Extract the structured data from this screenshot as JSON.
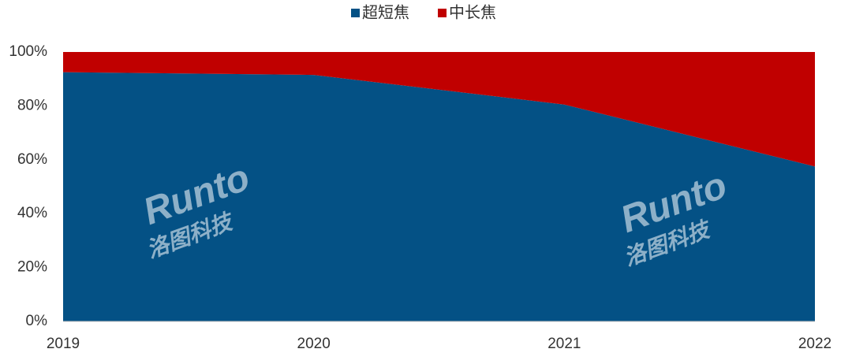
{
  "chart_data": {
    "type": "stacked_area",
    "categories": [
      "2019",
      "2020",
      "2021",
      "2022"
    ],
    "series": [
      {
        "name": "超短焦",
        "color": "#045185",
        "values": [
          92.5,
          91.5,
          80.5,
          57.5
        ]
      },
      {
        "name": "中长焦",
        "color": "#c00000",
        "values": [
          7.5,
          8.5,
          19.5,
          42.5
        ]
      }
    ],
    "ylim": [
      0,
      100
    ],
    "yticks": [
      {
        "value": 0,
        "label": "0%"
      },
      {
        "value": 20,
        "label": "20%"
      },
      {
        "value": 40,
        "label": "40%"
      },
      {
        "value": 60,
        "label": "60%"
      },
      {
        "value": 80,
        "label": "80%"
      },
      {
        "value": 100,
        "label": "100%"
      }
    ],
    "legend": "top",
    "watermark": [
      "Runto",
      "洛图科技"
    ]
  }
}
